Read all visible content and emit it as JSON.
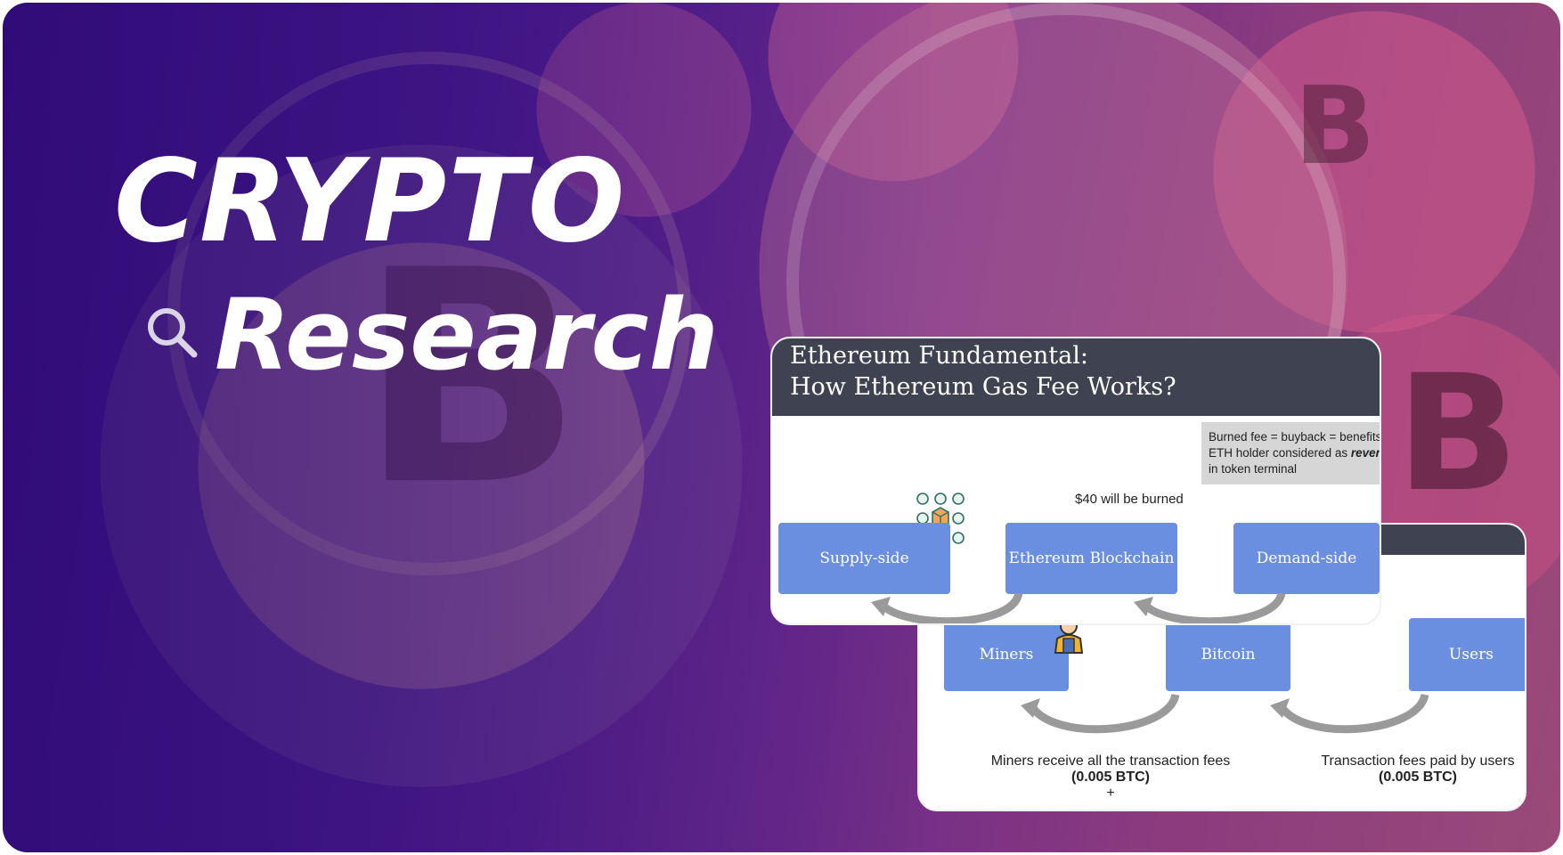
{
  "hero": {
    "title_line1": "CRYPTO",
    "title_line2": "Research"
  },
  "eth_card": {
    "title_line1": "Ethereum Fundamental:",
    "title_line2": "How Ethereum Gas Fee Works?",
    "note_line1": "Burned fee = buyback = benefits",
    "note_line2_prefix": "ETH holder considered as ",
    "note_line2_emphasis": "reven",
    "note_line3": "in token terminal",
    "burn_label": "$40 will be burned",
    "boxes": [
      "Supply-side",
      "Ethereum Blockchain",
      "Demand-side"
    ]
  },
  "btc_card": {
    "boxes": [
      "Miners",
      "Bitcoin",
      "Users"
    ],
    "left_caption": "Miners receive all the transaction fees",
    "left_amount": "(0.005 BTC)",
    "left_plus": "+",
    "right_caption": "Transaction fees paid by users",
    "right_amount": "(0.005 BTC)"
  },
  "icons": [
    "search-icon",
    "blockchain-network-icon",
    "miner-worker-icon"
  ],
  "colors": {
    "box_blue": "#6b8fe0",
    "header_dark": "#3f4351",
    "background_purple": "#3a0f86"
  }
}
